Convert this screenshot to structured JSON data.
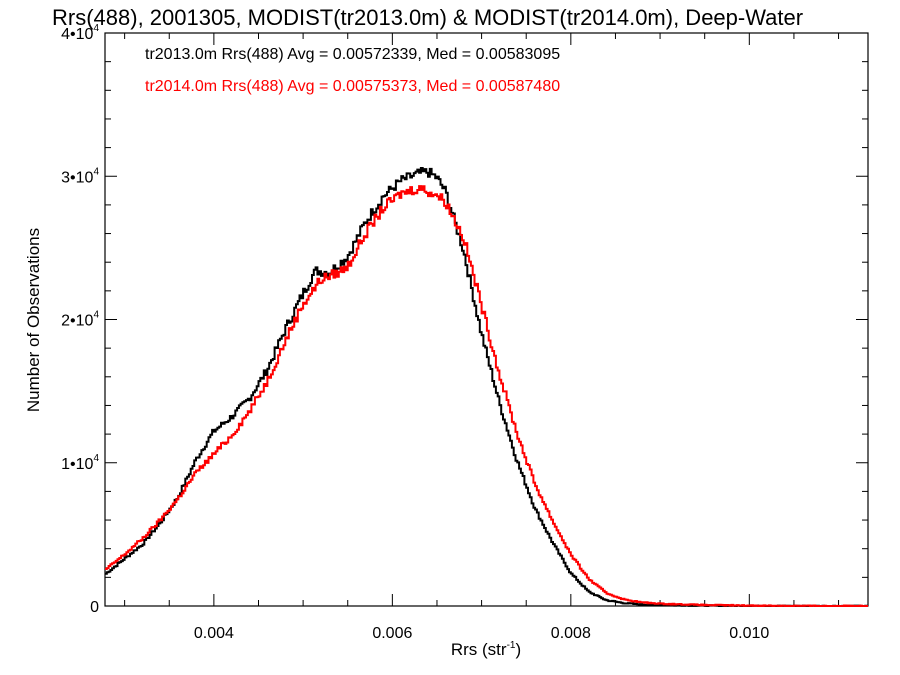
{
  "chart_data": {
    "type": "line",
    "title": "Rrs(488), 2001305, MODIST(tr2013.0m) & MODIST(tr2014.0m), Deep-Water",
    "xlabel": "Rrs (str",
    "xlabel_sup": "-1",
    "xlabel_close": ")",
    "ylabel": "Number of Observations",
    "xlim": [
      0.00278,
      0.01133
    ],
    "ylim": [
      0,
      40000
    ],
    "grid": false,
    "legend_position": "top-left",
    "x_ticks": [
      {
        "value": 0.004,
        "label": "0.004"
      },
      {
        "value": 0.006,
        "label": "0.006"
      },
      {
        "value": 0.008,
        "label": "0.008"
      },
      {
        "value": 0.01,
        "label": "0.010"
      }
    ],
    "y_ticks": [
      {
        "value": 0,
        "mant": "0",
        "exp": ""
      },
      {
        "value": 10000,
        "mant": "1•10",
        "exp": "4"
      },
      {
        "value": 20000,
        "mant": "2•10",
        "exp": "4"
      },
      {
        "value": 30000,
        "mant": "3•10",
        "exp": "4"
      },
      {
        "value": 40000,
        "mant": "4•10",
        "exp": "4"
      }
    ],
    "series": [
      {
        "name": "tr2013.0m",
        "legend_text": "tr2013.0m Rrs(488) Avg = 0.00572339, Med = 0.00583095",
        "color": "#000000",
        "points": [
          [
            0.00278,
            2200
          ],
          [
            0.003,
            3300
          ],
          [
            0.0032,
            4300
          ],
          [
            0.0034,
            5800
          ],
          [
            0.0036,
            7600
          ],
          [
            0.0038,
            10200
          ],
          [
            0.004,
            12200
          ],
          [
            0.0042,
            13200
          ],
          [
            0.0044,
            14500
          ],
          [
            0.0046,
            16500
          ],
          [
            0.0048,
            19300
          ],
          [
            0.005,
            21800
          ],
          [
            0.0051,
            23000
          ],
          [
            0.00515,
            23400
          ],
          [
            0.0053,
            23300
          ],
          [
            0.0055,
            24400
          ],
          [
            0.0057,
            26800
          ],
          [
            0.0059,
            28600
          ],
          [
            0.0061,
            29700
          ],
          [
            0.0063,
            30200
          ],
          [
            0.0064,
            30300
          ],
          [
            0.0065,
            29900
          ],
          [
            0.0066,
            28900
          ],
          [
            0.0068,
            24800
          ],
          [
            0.007,
            19000
          ],
          [
            0.0072,
            14200
          ],
          [
            0.0074,
            10100
          ],
          [
            0.0076,
            6800
          ],
          [
            0.0078,
            4400
          ],
          [
            0.008,
            2300
          ],
          [
            0.0082,
            1000
          ],
          [
            0.0084,
            400
          ],
          [
            0.0086,
            200
          ],
          [
            0.0088,
            100
          ],
          [
            0.009,
            60
          ],
          [
            0.0095,
            25
          ],
          [
            0.01,
            10
          ],
          [
            0.0113,
            0
          ]
        ]
      },
      {
        "name": "tr2014.0m",
        "legend_text": "tr2014.0m Rrs(488) Avg = 0.00575373, Med = 0.00587480",
        "color": "#ff0000",
        "points": [
          [
            0.00278,
            2500
          ],
          [
            0.003,
            3600
          ],
          [
            0.0032,
            4700
          ],
          [
            0.0034,
            6000
          ],
          [
            0.0036,
            7500
          ],
          [
            0.0038,
            9300
          ],
          [
            0.004,
            10600
          ],
          [
            0.0042,
            11900
          ],
          [
            0.0044,
            13600
          ],
          [
            0.0046,
            15700
          ],
          [
            0.0048,
            18500
          ],
          [
            0.005,
            21100
          ],
          [
            0.0052,
            22800
          ],
          [
            0.0054,
            23300
          ],
          [
            0.0055,
            23700
          ],
          [
            0.0057,
            26000
          ],
          [
            0.0059,
            27800
          ],
          [
            0.0061,
            28800
          ],
          [
            0.0063,
            29200
          ],
          [
            0.0065,
            28700
          ],
          [
            0.0066,
            28200
          ],
          [
            0.0068,
            25700
          ],
          [
            0.007,
            21000
          ],
          [
            0.0072,
            16200
          ],
          [
            0.0074,
            12000
          ],
          [
            0.0076,
            8500
          ],
          [
            0.0078,
            5900
          ],
          [
            0.008,
            3600
          ],
          [
            0.0082,
            1900
          ],
          [
            0.0084,
            900
          ],
          [
            0.0086,
            450
          ],
          [
            0.0088,
            250
          ],
          [
            0.009,
            160
          ],
          [
            0.0095,
            70
          ],
          [
            0.01,
            30
          ],
          [
            0.0105,
            10
          ],
          [
            0.0113,
            0
          ]
        ]
      }
    ]
  }
}
